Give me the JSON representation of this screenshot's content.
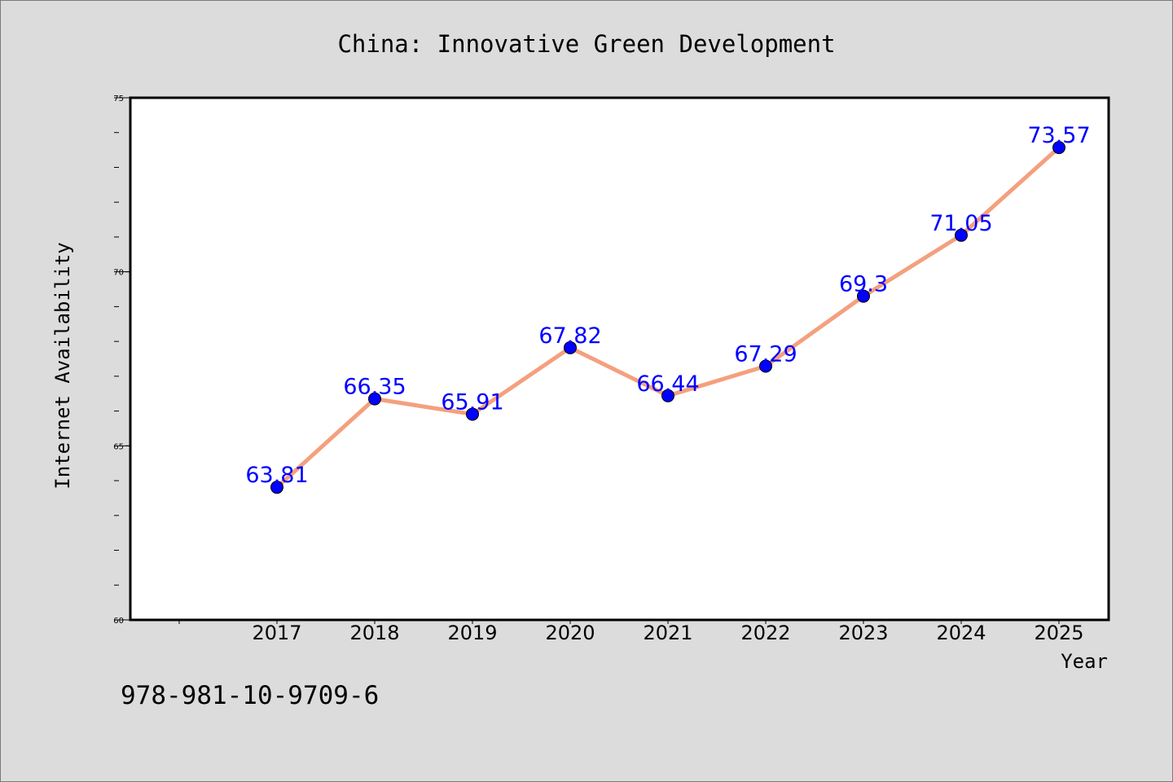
{
  "chart_data": {
    "type": "line",
    "title": "China: Innovative Green Development",
    "xlabel": "Year",
    "ylabel": "Internet Availability",
    "categories": [
      "2017",
      "2018",
      "2019",
      "2020",
      "2021",
      "2022",
      "2023",
      "2024",
      "2025"
    ],
    "series": [
      {
        "values": [
          63.81,
          66.35,
          65.91,
          67.82,
          66.44,
          67.29,
          69.3,
          71.05,
          73.57
        ],
        "labels": [
          "63.81",
          "66.35",
          "65.91",
          "67.82",
          "66.44",
          "67.29",
          "69.3",
          "71.05",
          "73.57"
        ]
      }
    ],
    "ylim": [
      60,
      75
    ],
    "yticks": [
      "60",
      "65",
      "70",
      "75"
    ],
    "grid": false,
    "legend": "none",
    "colors": {
      "line": "#f4a07e",
      "marker": "#0000ff",
      "data_label": "#0000ff",
      "background": "#dcdcdc",
      "plot_background": "#ffffff"
    }
  },
  "footer": {
    "isbn": "978-981-10-9709-6"
  }
}
